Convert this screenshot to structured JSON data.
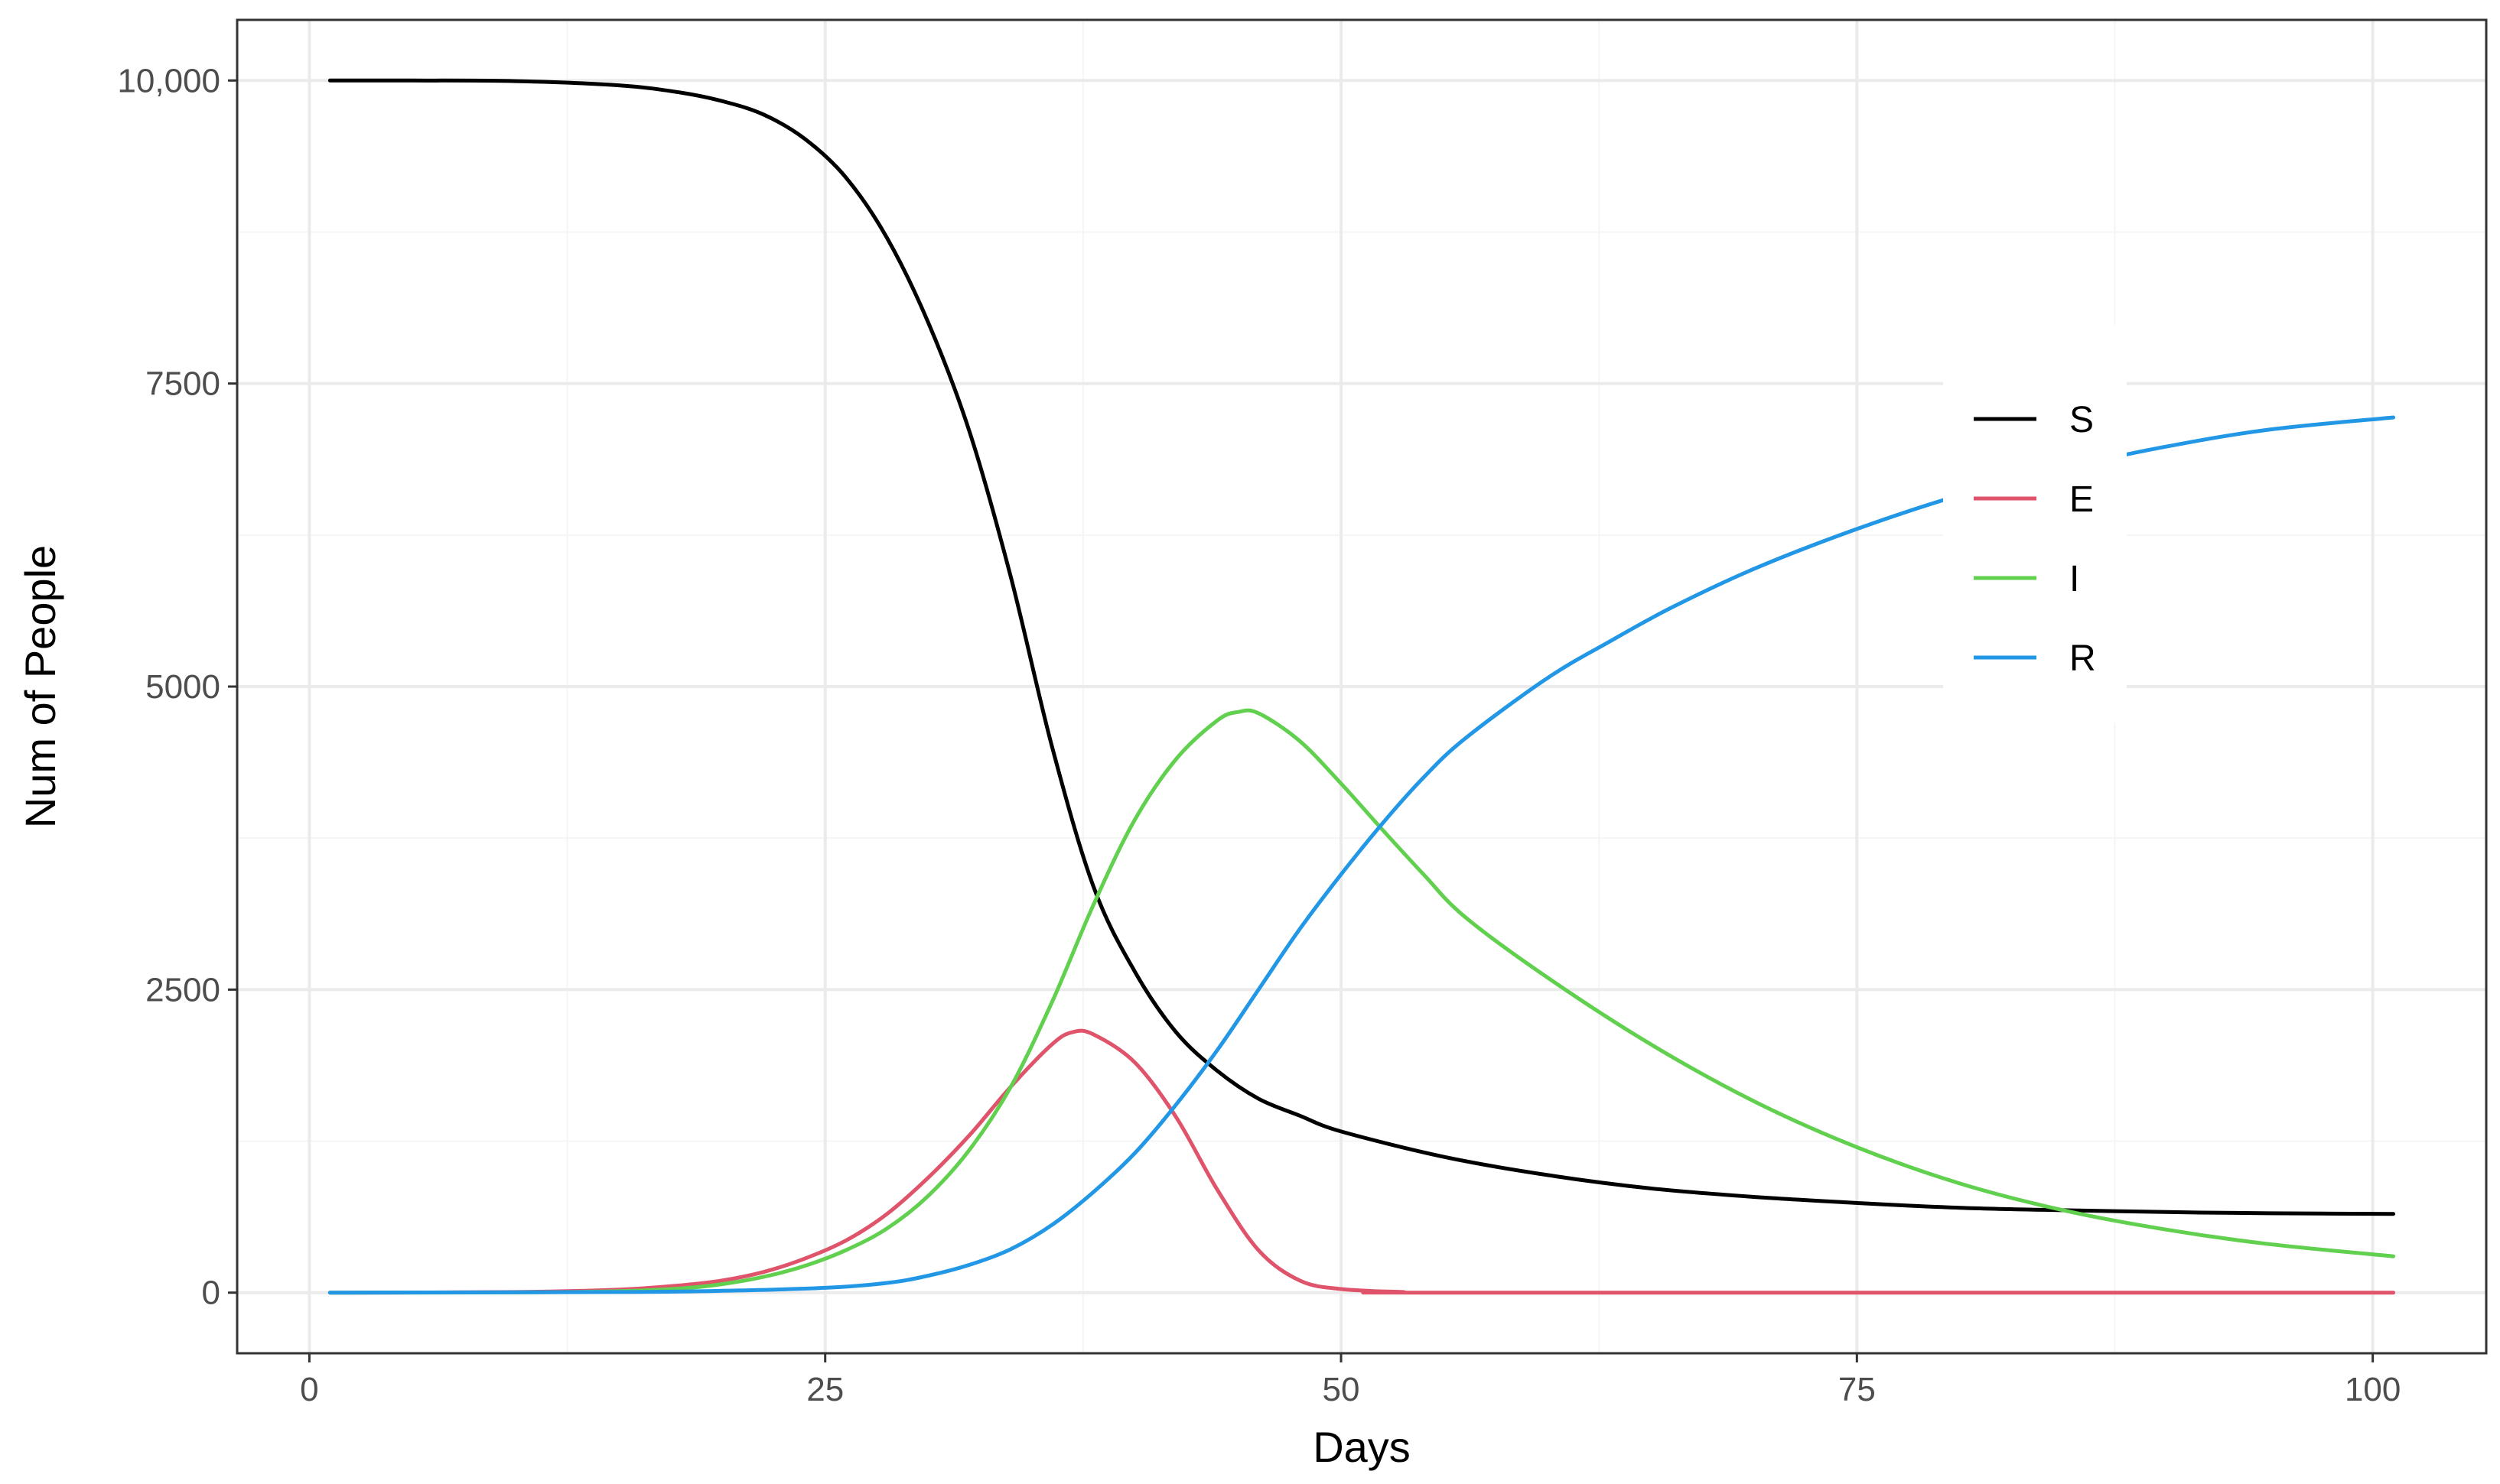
{
  "chart_data": {
    "type": "line",
    "title": "",
    "xlabel": "Days",
    "ylabel": "Num of People",
    "xlim": [
      -3.5,
      105.5
    ],
    "ylim": [
      -500,
      10500
    ],
    "x_ticks": [
      0,
      25,
      50,
      75,
      100
    ],
    "x_tick_labels": [
      "0",
      "25",
      "50",
      "75",
      "100"
    ],
    "y_ticks": [
      0,
      2500,
      5000,
      7500,
      10000
    ],
    "y_tick_labels": [
      "0",
      "2500",
      "5000",
      "7500",
      "10,000"
    ],
    "grid": true,
    "legend_position": "right",
    "colors": {
      "S": "#000000",
      "E": "#df536b",
      "I": "#61d04f",
      "R": "#2297e6",
      "grid_major": "#ebebeb",
      "grid_minor": "#f5f5f5",
      "panel_border": "#333333"
    },
    "series": [
      {
        "name": "S",
        "color": "#000000",
        "points": [
          [
            1,
            10000
          ],
          [
            5,
            10000
          ],
          [
            10,
            9995
          ],
          [
            15,
            9960
          ],
          [
            18,
            9900
          ],
          [
            20,
            9830
          ],
          [
            22,
            9720
          ],
          [
            24,
            9520
          ],
          [
            26,
            9200
          ],
          [
            28,
            8700
          ],
          [
            30,
            8000
          ],
          [
            32,
            7100
          ],
          [
            34,
            5900
          ],
          [
            36,
            4500
          ],
          [
            38,
            3350
          ],
          [
            40,
            2650
          ],
          [
            42,
            2150
          ],
          [
            44,
            1830
          ],
          [
            46,
            1600
          ],
          [
            48,
            1460
          ],
          [
            50,
            1330
          ],
          [
            55,
            1120
          ],
          [
            60,
            970
          ],
          [
            65,
            860
          ],
          [
            70,
            790
          ],
          [
            75,
            740
          ],
          [
            80,
            700
          ],
          [
            85,
            680
          ],
          [
            90,
            665
          ],
          [
            95,
            655
          ],
          [
            101,
            650
          ]
        ]
      },
      {
        "name": "E",
        "color": "#df536b",
        "points": [
          [
            1,
            0
          ],
          [
            10,
            5
          ],
          [
            15,
            25
          ],
          [
            18,
            60
          ],
          [
            20,
            100
          ],
          [
            22,
            170
          ],
          [
            24,
            280
          ],
          [
            26,
            430
          ],
          [
            28,
            650
          ],
          [
            30,
            950
          ],
          [
            32,
            1300
          ],
          [
            34,
            1700
          ],
          [
            36,
            2050
          ],
          [
            37,
            2150
          ],
          [
            38,
            2130
          ],
          [
            40,
            1900
          ],
          [
            42,
            1450
          ],
          [
            44,
            850
          ],
          [
            46,
            350
          ],
          [
            48,
            100
          ],
          [
            50,
            30
          ],
          [
            53,
            5
          ],
          [
            55,
            0
          ],
          [
            101,
            0
          ]
        ]
      },
      {
        "name": "I",
        "color": "#61d04f",
        "points": [
          [
            1,
            0
          ],
          [
            10,
            2
          ],
          [
            15,
            12
          ],
          [
            18,
            35
          ],
          [
            20,
            70
          ],
          [
            22,
            130
          ],
          [
            24,
            220
          ],
          [
            26,
            350
          ],
          [
            28,
            530
          ],
          [
            30,
            800
          ],
          [
            32,
            1180
          ],
          [
            34,
            1700
          ],
          [
            36,
            2400
          ],
          [
            38,
            3200
          ],
          [
            40,
            3900
          ],
          [
            42,
            4400
          ],
          [
            44,
            4720
          ],
          [
            45,
            4790
          ],
          [
            46,
            4780
          ],
          [
            48,
            4550
          ],
          [
            50,
            4200
          ],
          [
            52,
            3820
          ],
          [
            54,
            3450
          ],
          [
            56,
            3100
          ],
          [
            60,
            2600
          ],
          [
            65,
            2050
          ],
          [
            70,
            1580
          ],
          [
            75,
            1200
          ],
          [
            80,
            900
          ],
          [
            85,
            680
          ],
          [
            90,
            520
          ],
          [
            95,
            400
          ],
          [
            101,
            300
          ]
        ]
      },
      {
        "name": "R",
        "color": "#2297e6",
        "points": [
          [
            1,
            0
          ],
          [
            15,
            5
          ],
          [
            20,
            15
          ],
          [
            25,
            40
          ],
          [
            28,
            80
          ],
          [
            30,
            140
          ],
          [
            32,
            230
          ],
          [
            34,
            360
          ],
          [
            36,
            560
          ],
          [
            38,
            830
          ],
          [
            40,
            1150
          ],
          [
            42,
            1550
          ],
          [
            44,
            2000
          ],
          [
            46,
            2500
          ],
          [
            48,
            3000
          ],
          [
            50,
            3450
          ],
          [
            52,
            3870
          ],
          [
            54,
            4250
          ],
          [
            56,
            4570
          ],
          [
            60,
            5070
          ],
          [
            63,
            5370
          ],
          [
            66,
            5650
          ],
          [
            70,
            5970
          ],
          [
            75,
            6300
          ],
          [
            80,
            6580
          ],
          [
            85,
            6800
          ],
          [
            90,
            6980
          ],
          [
            95,
            7120
          ],
          [
            101,
            7220
          ]
        ]
      }
    ]
  }
}
